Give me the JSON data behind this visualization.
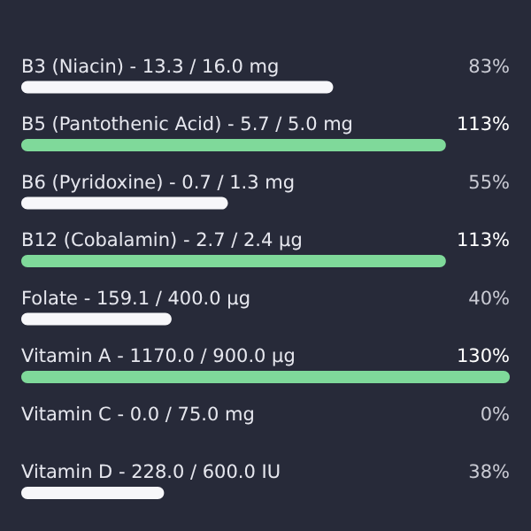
{
  "chart_data": {
    "type": "bar",
    "orientation": "horizontal",
    "xlim": [
      0,
      130
    ],
    "tick_labels": false,
    "categories": [
      null,
      "B3 (Niacin) - 13.3 / 16.0 mg",
      "B5 (Pantothenic Acid) - 5.7 / 5.0 mg",
      "B6 (Pyridoxine) - 0.7 / 1.3 mg",
      "B12 (Cobalamin) - 2.7 / 2.4 µg",
      "Folate - 159.1 / 400.0 µg",
      "Vitamin A - 1170.0 / 900.0 µg",
      "Vitamin C - 0.0 / 75.0 mg",
      "Vitamin D - 228.0 / 600.0 IU"
    ],
    "values": [
      null,
      83,
      113,
      55,
      113,
      40,
      130,
      0,
      38
    ],
    "colors": [
      "#7fd99a",
      "#f7f7fa",
      "#7fd99a",
      "#f7f7fa",
      "#7fd99a",
      "#f7f7fa",
      "#7fd99a",
      "#f7f7fa",
      "#f7f7fa"
    ],
    "value_labels": [
      null,
      "83%",
      "113%",
      "55%",
      "113%",
      "40%",
      "130%",
      "0%",
      "38%"
    ]
  }
}
